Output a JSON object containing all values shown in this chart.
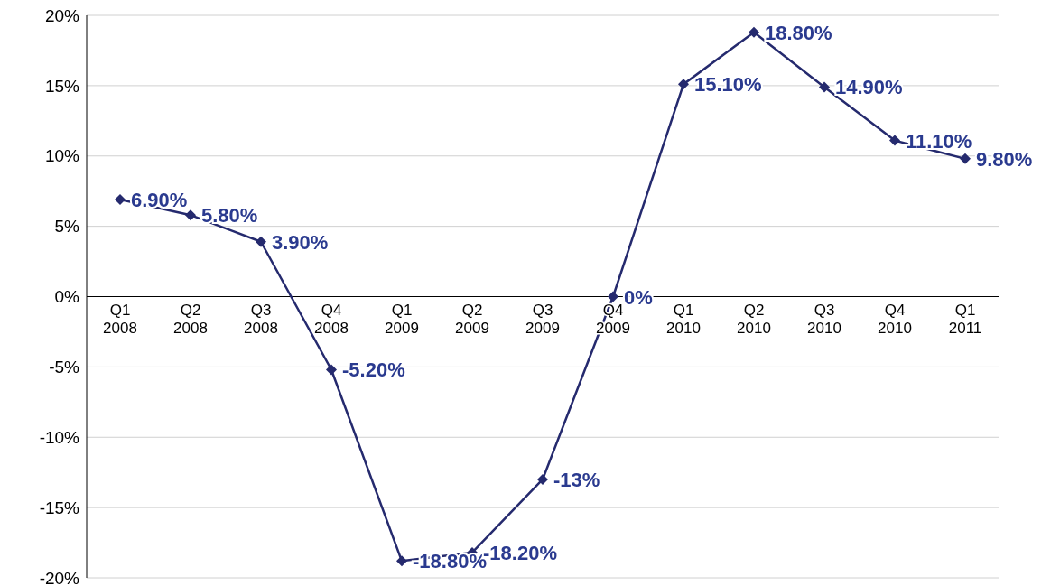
{
  "chart_data": {
    "type": "line",
    "categories": [
      "Q1 2008",
      "Q2 2008",
      "Q3 2008",
      "Q4 2008",
      "Q1 2009",
      "Q2 2009",
      "Q3 2009",
      "Q4 2009",
      "Q1 2010",
      "Q2 2010",
      "Q3 2010",
      "Q4 2010",
      "Q1 2011"
    ],
    "series": [
      {
        "color": "#252a6e",
        "values": [
          6.9,
          5.8,
          3.9,
          -5.2,
          -18.8,
          -18.2,
          -13,
          0,
          15.1,
          18.8,
          14.9,
          11.1,
          9.8
        ],
        "value_labels": [
          "6.90%",
          "5.80%",
          "3.90%",
          "-5.20%",
          "-18.80%",
          "-18.20%",
          "-13%",
          "0%",
          "15.10%",
          "18.80%",
          "14.90%",
          "11.10%",
          "9.80%"
        ]
      }
    ],
    "ylim": [
      -20,
      20
    ],
    "yticks": [
      {
        "value": -20,
        "label": "-20%"
      },
      {
        "value": -15,
        "label": "-15%"
      },
      {
        "value": -10,
        "label": "-10%"
      },
      {
        "value": -5,
        "label": "-5%"
      },
      {
        "value": 0,
        "label": "0%"
      },
      {
        "value": 5,
        "label": "5%"
      },
      {
        "value": 10,
        "label": "10%"
      },
      {
        "value": 15,
        "label": "15%"
      },
      {
        "value": 20,
        "label": "20%"
      }
    ],
    "grid": "y",
    "legend": false,
    "marker": "diamond",
    "line_style": "solid"
  }
}
